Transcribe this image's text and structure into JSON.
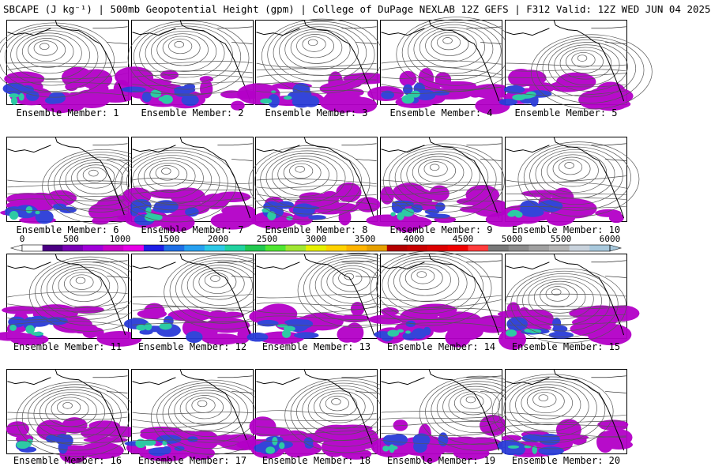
{
  "header": {
    "title": "SBCAPE (J kg⁻¹) | 500mb Geopotential Height (gpm) | College of DuPage NEXLAB 12Z GEFS | F312 Valid: 12Z WED JUN 04 2025"
  },
  "panels": [
    {
      "label": "Ensemble Member: 1"
    },
    {
      "label": "Ensemble Member: 2"
    },
    {
      "label": "Ensemble Member: 3"
    },
    {
      "label": "Ensemble Member: 4"
    },
    {
      "label": "Ensemble Member: 5"
    },
    {
      "label": "Ensemble Member: 6"
    },
    {
      "label": "Ensemble Member: 7"
    },
    {
      "label": "Ensemble Member: 8"
    },
    {
      "label": "Ensemble Member: 9"
    },
    {
      "label": "Ensemble Member: 10"
    },
    {
      "label": "Ensemble Member: 11"
    },
    {
      "label": "Ensemble Member: 12"
    },
    {
      "label": "Ensemble Member: 13"
    },
    {
      "label": "Ensemble Member: 14"
    },
    {
      "label": "Ensemble Member: 15"
    },
    {
      "label": "Ensemble Member: 16"
    },
    {
      "label": "Ensemble Member: 17"
    },
    {
      "label": "Ensemble Member: 18"
    },
    {
      "label": "Ensemble Member: 19"
    },
    {
      "label": "Ensemble Member: 20"
    }
  ],
  "colorbar": {
    "ticks": [
      "0",
      "500",
      "1000",
      "1500",
      "2000",
      "2500",
      "3000",
      "3500",
      "4000",
      "4500",
      "5000",
      "5500",
      "6000"
    ],
    "colors": [
      "#ffffff",
      "#4b0082",
      "#7a00b5",
      "#a000d8",
      "#c800c8",
      "#e600e6",
      "#1e1ee6",
      "#1f6fe6",
      "#27a0f0",
      "#2dc8e6",
      "#22d2a0",
      "#22c850",
      "#50e632",
      "#a0e632",
      "#e6f000",
      "#ffd200",
      "#ffb400",
      "#e6a000",
      "#b40000",
      "#c80000",
      "#dc0000",
      "#f00000",
      "#ff3c3c",
      "#787878",
      "#8c8c8c",
      "#a0a0a0",
      "#b4b4b4",
      "#c8d2dc",
      "#a8c8dc"
    ]
  }
}
